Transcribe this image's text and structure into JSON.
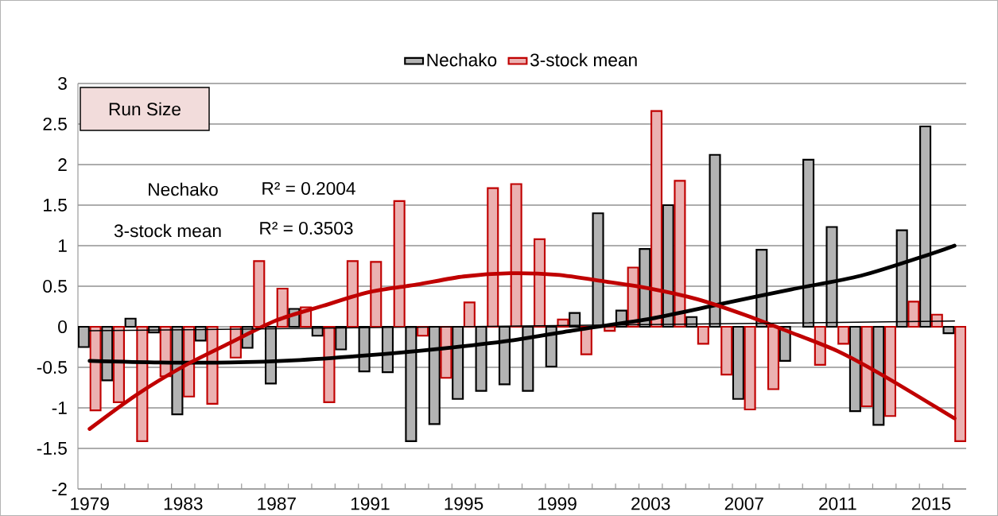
{
  "chart_data": {
    "type": "bar",
    "x": [
      1979,
      1980,
      1981,
      1982,
      1983,
      1984,
      1985,
      1986,
      1987,
      1988,
      1989,
      1990,
      1991,
      1992,
      1993,
      1994,
      1995,
      1996,
      1997,
      1998,
      1999,
      2000,
      2001,
      2002,
      2003,
      2004,
      2005,
      2006,
      2007,
      2008,
      2009,
      2010,
      2011,
      2012,
      2013,
      2014,
      2015,
      2016
    ],
    "series": [
      {
        "name": "Nechako",
        "color": "#b3b3b3",
        "values": [
          -0.25,
          -0.66,
          0.1,
          -0.07,
          -1.08,
          -0.17,
          null,
          -0.26,
          -0.7,
          0.22,
          -0.11,
          -0.28,
          -0.55,
          -0.56,
          -1.41,
          -1.2,
          -0.89,
          -0.79,
          -0.71,
          -0.79,
          -0.49,
          0.17,
          1.4,
          0.2,
          0.96,
          1.5,
          0.12,
          2.12,
          -0.89,
          0.95,
          -0.42,
          2.06,
          1.23,
          -1.04,
          -1.21,
          1.19,
          2.47,
          -0.08
        ]
      },
      {
        "name": "3-stock mean",
        "color": "#ebb1b1",
        "values": [
          -1.03,
          -0.93,
          -1.41,
          -0.61,
          -0.86,
          -0.95,
          -0.38,
          0.81,
          0.47,
          0.24,
          -0.93,
          0.81,
          0.8,
          1.55,
          -0.11,
          -0.63,
          0.3,
          1.71,
          1.76,
          1.08,
          0.09,
          -0.34,
          -0.05,
          0.73,
          2.66,
          1.8,
          -0.21,
          -0.59,
          -1.02,
          -0.77,
          null,
          -0.47,
          -0.21,
          -0.98,
          -1.1,
          0.31,
          0.15,
          -1.41
        ]
      },
      {
        "type": "line",
        "color": "#000000",
        "x": [
          1979,
          1982,
          1985,
          1988,
          1991,
          1994,
          1997,
          2000,
          2003,
          2006,
          2009,
          2012,
          2015,
          2016
        ],
        "values": [
          -0.42,
          -0.44,
          -0.44,
          -0.41,
          -0.35,
          -0.27,
          -0.17,
          -0.03,
          0.1,
          0.28,
          0.46,
          0.63,
          0.9,
          1.0
        ]
      },
      {
        "type": "line",
        "color": "#c00000",
        "x": [
          1979,
          1981,
          1983,
          1985,
          1987,
          1989,
          1991,
          1993,
          1995,
          1997,
          1999,
          2001,
          2003,
          2005,
          2007,
          2009,
          2011,
          2013,
          2016
        ],
        "values": [
          -1.26,
          -0.84,
          -0.49,
          -0.2,
          0.08,
          0.26,
          0.43,
          0.52,
          0.62,
          0.66,
          0.64,
          0.56,
          0.47,
          0.34,
          0.15,
          -0.07,
          -0.3,
          -0.61,
          -1.13
        ]
      },
      {
        "type": "line",
        "color": "#000000",
        "x": [
          1979,
          2016
        ],
        "values": [
          -0.05,
          0.07
        ]
      }
    ],
    "xlim": [
      1978.5,
      2016.5
    ],
    "xticks": [
      1979,
      1983,
      1987,
      1991,
      1995,
      1999,
      2003,
      2007,
      2011,
      2015
    ],
    "ylim": [
      -2,
      3
    ],
    "yticks": [
      -2,
      -1.5,
      -1,
      -0.5,
      0,
      0.5,
      1,
      1.5,
      2,
      2.5,
      3
    ],
    "grid": "y",
    "legend": "top",
    "annotations": [
      "Run Size",
      "Nechako",
      "R² = 0.2004",
      "3-stock mean",
      "R² = 0.3503"
    ]
  }
}
